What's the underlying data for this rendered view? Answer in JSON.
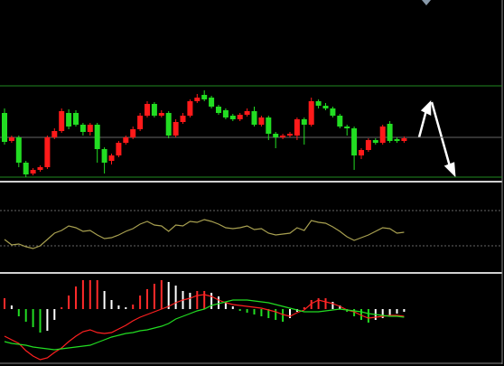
{
  "chart_data": [
    {
      "type": "candlestick",
      "ylim": [
        0,
        200
      ],
      "up_color": "#ff1a1a",
      "down_color": "#22dd22",
      "levels": [
        105,
        48,
        4
      ],
      "level_colors": [
        "#1f8a1f",
        "#666666",
        "#1f8a1f"
      ],
      "ohlc": [
        [
          75,
          80,
          40,
          43
        ],
        [
          44,
          50,
          42,
          48
        ],
        [
          48,
          50,
          15,
          20
        ],
        [
          20,
          22,
          4,
          7
        ],
        [
          8,
          14,
          6,
          12
        ],
        [
          12,
          17,
          10,
          15
        ],
        [
          15,
          50,
          13,
          48
        ],
        [
          48,
          58,
          46,
          55
        ],
        [
          55,
          80,
          53,
          77
        ],
        [
          75,
          79,
          57,
          60
        ],
        [
          75,
          78,
          60,
          62
        ],
        [
          62,
          64,
          50,
          54
        ],
        [
          54,
          64,
          50,
          62
        ],
        [
          62,
          64,
          20,
          35
        ],
        [
          35,
          37,
          8,
          20
        ],
        [
          22,
          30,
          18,
          28
        ],
        [
          28,
          44,
          26,
          42
        ],
        [
          42,
          50,
          40,
          48
        ],
        [
          48,
          60,
          46,
          57
        ],
        [
          57,
          75,
          55,
          72
        ],
        [
          72,
          88,
          70,
          85
        ],
        [
          85,
          87,
          70,
          72
        ],
        [
          72,
          78,
          70,
          75
        ],
        [
          75,
          77,
          47,
          50
        ],
        [
          50,
          68,
          48,
          65
        ],
        [
          65,
          75,
          63,
          72
        ],
        [
          72,
          90,
          70,
          88
        ],
        [
          88,
          96,
          86,
          92
        ],
        [
          95,
          100,
          88,
          90
        ],
        [
          92,
          94,
          80,
          82
        ],
        [
          82,
          84,
          73,
          75
        ],
        [
          78,
          80,
          68,
          70
        ],
        [
          72,
          74,
          66,
          68
        ],
        [
          68,
          75,
          66,
          73
        ],
        [
          73,
          80,
          71,
          77
        ],
        [
          77,
          82,
          60,
          62
        ],
        [
          62,
          72,
          60,
          70
        ],
        [
          70,
          72,
          45,
          52
        ],
        [
          52,
          54,
          36,
          48
        ],
        [
          48,
          52,
          46,
          50
        ],
        [
          50,
          54,
          48,
          52
        ],
        [
          50,
          70,
          45,
          68
        ],
        [
          68,
          70,
          40,
          62
        ],
        [
          62,
          92,
          60,
          88
        ],
        [
          88,
          90,
          80,
          83
        ],
        [
          83,
          86,
          78,
          80
        ],
        [
          80,
          82,
          70,
          72
        ],
        [
          72,
          74,
          58,
          60
        ],
        [
          60,
          62,
          50,
          58
        ],
        [
          58,
          60,
          12,
          28
        ],
        [
          28,
          36,
          24,
          34
        ],
        [
          34,
          47,
          32,
          45
        ],
        [
          45,
          47,
          40,
          42
        ],
        [
          42,
          62,
          40,
          60
        ],
        [
          63,
          66,
          42,
          44
        ],
        [
          46,
          48,
          42,
          44
        ],
        [
          44,
          49,
          42,
          47
        ]
      ]
    },
    {
      "type": "line",
      "ylim": [
        0,
        97
      ],
      "color": "#a8a050",
      "levels": [
        67,
        28
      ],
      "level_color": "#666666",
      "values": [
        35,
        29,
        30,
        27,
        25,
        28,
        35,
        42,
        45,
        50,
        48,
        44,
        45,
        40,
        36,
        37,
        40,
        44,
        47,
        52,
        55,
        51,
        50,
        44,
        51,
        50,
        55,
        54,
        57,
        55,
        52,
        48,
        47,
        48,
        50,
        46,
        47,
        42,
        40,
        41,
        42,
        48,
        45,
        56,
        54,
        53,
        49,
        44,
        38,
        34,
        37,
        40,
        44,
        48,
        47,
        42,
        43
      ]
    },
    {
      "type": "combo",
      "ylim": [
        -58,
        38
      ],
      "rise_color": "#ff2a2a",
      "fall_color": "#22dd22",
      "fade_color": "#ffffff",
      "values": [
        12,
        4,
        -8,
        -14,
        -20,
        -26,
        -24,
        -12,
        2,
        15,
        25,
        32,
        32,
        32,
        20,
        10,
        4,
        2,
        5,
        15,
        22,
        28,
        32,
        30,
        26,
        20,
        18,
        20,
        20,
        18,
        14,
        8,
        3,
        -2,
        -4,
        -6,
        -8,
        -10,
        -12,
        -14,
        -10,
        -3,
        2,
        10,
        12,
        12,
        8,
        4,
        -3,
        -8,
        -12,
        -15,
        -12,
        -10,
        -8,
        -5,
        -3
      ],
      "series": [
        {
          "color": "#ff2020",
          "values": [
            -30,
            -34,
            -38,
            -46,
            -52,
            -56,
            -54,
            -48,
            -43,
            -36,
            -30,
            -25,
            -23,
            -26,
            -27,
            -26,
            -22,
            -18,
            -13,
            -9,
            -6,
            -3,
            0,
            3,
            7,
            10,
            12,
            15,
            16,
            14,
            10,
            7,
            5,
            4,
            3,
            2,
            1,
            -1,
            -3,
            -6,
            -8,
            -4,
            -1,
            6,
            10,
            8,
            6,
            3,
            -1,
            -3,
            -7,
            -10,
            -9,
            -8,
            -7,
            -7,
            -8
          ]
        },
        {
          "color": "#22dd22",
          "values": [
            -36,
            -38,
            -39,
            -40,
            -42,
            -43,
            -44,
            -45,
            -44,
            -43,
            -42,
            -41,
            -40,
            -37,
            -34,
            -31,
            -29,
            -27,
            -26,
            -24,
            -23,
            -21,
            -19,
            -16,
            -11,
            -8,
            -5,
            -2,
            0,
            4,
            6,
            8,
            10,
            10,
            10,
            9,
            8,
            7,
            5,
            3,
            1,
            -1,
            -3,
            -3,
            -3,
            -2,
            -1,
            0,
            -1,
            -2,
            -3,
            -5,
            -6,
            -7,
            -8,
            -8,
            -9
          ]
        }
      ]
    }
  ]
}
